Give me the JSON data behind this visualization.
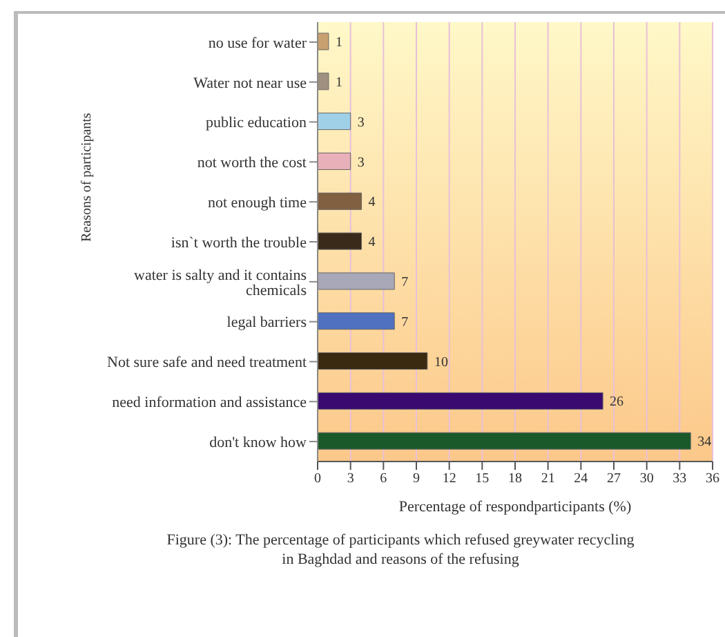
{
  "chart_data": {
    "type": "bar",
    "orientation": "horizontal",
    "categories": [
      "no use for water",
      "Water not near use",
      "public education",
      "not worth the cost",
      "not enough time",
      "isn`t worth the trouble",
      "water is salty and it contains chemicals",
      "legal barriers",
      "Not sure safe and need treatment",
      "need information and assistance",
      "don't know how"
    ],
    "values": [
      1,
      1,
      3,
      3,
      4,
      4,
      7,
      7,
      10,
      26,
      34
    ],
    "colors": [
      "#c8a070",
      "#a09080",
      "#a0d0e8",
      "#e8b0b8",
      "#806040",
      "#3a2a1a",
      "#a8a8b8",
      "#5070c0",
      "#3a2a10",
      "#3a0a70",
      "#1a5a2a"
    ],
    "xlim": [
      0,
      36
    ],
    "xticks": [
      0,
      3,
      6,
      9,
      12,
      15,
      18,
      21,
      24,
      27,
      30,
      33,
      36
    ],
    "xlabel": "Percentage of respondparticipants (%)",
    "ylabel": "Reasons of participants",
    "data_labels": true,
    "grid": "x",
    "annotations": [
      "Figure (3): The percentage of participants which refused greywater recycling in Baghdad and reasons of the refusing"
    ]
  }
}
